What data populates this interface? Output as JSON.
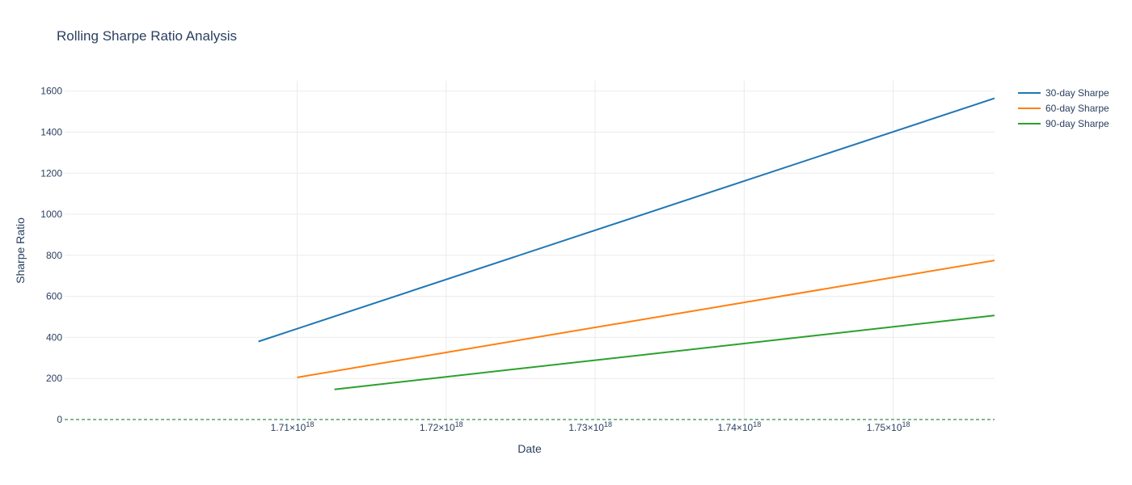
{
  "chart_data": {
    "type": "line",
    "title": "Rolling Sharpe Ratio Analysis",
    "xlabel": "Date",
    "ylabel": "Sharpe Ratio",
    "grid": true,
    "legend_position": "top-right",
    "xlim": [
      1.6944e+18,
      1.7568e+18
    ],
    "ylim": [
      0,
      1650
    ],
    "x_ticks": [
      {
        "value": 1.71e+18,
        "mantissa": "1.71",
        "exp": "18"
      },
      {
        "value": 1.72e+18,
        "mantissa": "1.72",
        "exp": "18"
      },
      {
        "value": 1.73e+18,
        "mantissa": "1.73",
        "exp": "18"
      },
      {
        "value": 1.74e+18,
        "mantissa": "1.74",
        "exp": "18"
      },
      {
        "value": 1.75e+18,
        "mantissa": "1.75",
        "exp": "18"
      }
    ],
    "y_ticks": [
      0,
      200,
      400,
      600,
      800,
      1000,
      1200,
      1400,
      1600
    ],
    "series": [
      {
        "name": "30-day Sharpe",
        "color": "#1f77b4",
        "x": [
          1.7074e+18,
          1.7568e+18
        ],
        "y": [
          380,
          1565
        ]
      },
      {
        "name": "60-day Sharpe",
        "color": "#ff7f0e",
        "x": [
          1.71e+18,
          1.7568e+18
        ],
        "y": [
          205,
          775
        ]
      },
      {
        "name": "90-day Sharpe",
        "color": "#2ca02c",
        "x": [
          1.7125e+18,
          1.7568e+18
        ],
        "y": [
          147,
          507
        ]
      }
    ],
    "reference_line": {
      "y": 0,
      "color": "#5a9e6f",
      "style": "dash"
    }
  }
}
